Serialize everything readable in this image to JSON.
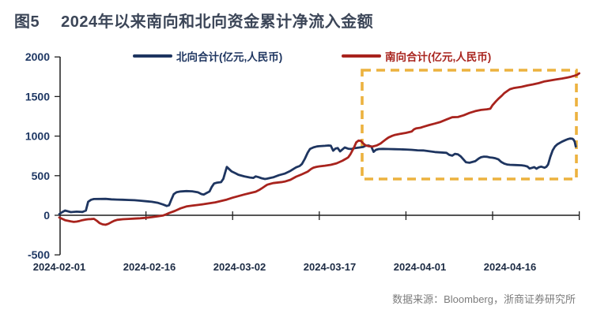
{
  "header": {
    "tag": "图5",
    "title": "2024年以来南向和北向资金累计净流入金额"
  },
  "legend": [
    {
      "label": "北向合计(亿元,人民币)",
      "color": "#1e3560"
    },
    {
      "label": "南向合计(亿元,人民币)",
      "color": "#a8231d"
    }
  ],
  "footer": {
    "source": "数据来源：Bloomberg，浙商证券研究所"
  },
  "chart_data": {
    "type": "line",
    "title": "2024年以来南向和北向资金累计净流入金额",
    "xlabel": "",
    "ylabel": "亿元,人民币",
    "grid": false,
    "legend_position": "top",
    "x_axis": {
      "unit": "date",
      "tick_labels": [
        "2024-02-01",
        "2024-02-16",
        "2024-03-02",
        "2024-03-17",
        "2024-04-01",
        "2024-04-16"
      ],
      "range_days_from_2024_02_01": [
        0,
        90
      ]
    },
    "y_axis": {
      "ticks": [
        2000,
        1500,
        1000,
        500,
        0,
        -500
      ],
      "range": [
        -500,
        2000
      ]
    },
    "highlight_box": {
      "color": "#ecb23f",
      "style": "dashed",
      "day_range": [
        52,
        90
      ],
      "value_range": [
        460,
        1830
      ],
      "meaning": "区间高亮：3月下旬以来南向持续流入、北向走平的背离区间"
    },
    "series": [
      {
        "name": "北向合计(亿元,人民币)",
        "color": "#1e3560",
        "points": [
          [
            0,
            15
          ],
          [
            0.5,
            40
          ],
          [
            1,
            60
          ],
          [
            1.5,
            50
          ],
          [
            2,
            40
          ],
          [
            3,
            46
          ],
          [
            4,
            42
          ],
          [
            4.6,
            60
          ],
          [
            5,
            170
          ],
          [
            5.5,
            196
          ],
          [
            6,
            205
          ],
          [
            7,
            206
          ],
          [
            8,
            207
          ],
          [
            9,
            201
          ],
          [
            10,
            198
          ],
          [
            11,
            196
          ],
          [
            12,
            193
          ],
          [
            13,
            190
          ],
          [
            14,
            184
          ],
          [
            15,
            177
          ],
          [
            16,
            170
          ],
          [
            17,
            158
          ],
          [
            18,
            135
          ],
          [
            18.6,
            118
          ],
          [
            19,
            126
          ],
          [
            19.4,
            200
          ],
          [
            19.8,
            266
          ],
          [
            20.3,
            292
          ],
          [
            21,
            301
          ],
          [
            22,
            306
          ],
          [
            23,
            303
          ],
          [
            24,
            290
          ],
          [
            24.6,
            268
          ],
          [
            25,
            262
          ],
          [
            25.5,
            281
          ],
          [
            26,
            301
          ],
          [
            26.4,
            360
          ],
          [
            26.8,
            401
          ],
          [
            27.3,
            412
          ],
          [
            28,
            418
          ],
          [
            28.4,
            461
          ],
          [
            28.8,
            561
          ],
          [
            29,
            611
          ],
          [
            29.3,
            590
          ],
          [
            29.8,
            556
          ],
          [
            30.5,
            531
          ],
          [
            31,
            512
          ],
          [
            32,
            492
          ],
          [
            33,
            477
          ],
          [
            33.6,
            472
          ],
          [
            34,
            491
          ],
          [
            34.5,
            481
          ],
          [
            35,
            468
          ],
          [
            35.6,
            458
          ],
          [
            36,
            463
          ],
          [
            36.6,
            473
          ],
          [
            37,
            479
          ],
          [
            38,
            506
          ],
          [
            39,
            526
          ],
          [
            40,
            561
          ],
          [
            40.6,
            589
          ],
          [
            41,
            606
          ],
          [
            41.6,
            623
          ],
          [
            42,
            648
          ],
          [
            42.5,
            712
          ],
          [
            43,
            792
          ],
          [
            43.4,
            838
          ],
          [
            44,
            858
          ],
          [
            44.6,
            870
          ],
          [
            45,
            873
          ],
          [
            46,
            877
          ],
          [
            46.6,
            881
          ],
          [
            47,
            878
          ],
          [
            47.4,
            816
          ],
          [
            47.8,
            843
          ],
          [
            48.2,
            849
          ],
          [
            48.6,
            807
          ],
          [
            49,
            831
          ],
          [
            49.4,
            857
          ],
          [
            50,
            841
          ],
          [
            50.6,
            837
          ],
          [
            51,
            847
          ],
          [
            52,
            857
          ],
          [
            52.6,
            863
          ],
          [
            53,
            877
          ],
          [
            53.5,
            881
          ],
          [
            54,
            869
          ],
          [
            54.4,
            801
          ],
          [
            54.8,
            827
          ],
          [
            55.3,
            837
          ],
          [
            56,
            839
          ],
          [
            57,
            837
          ],
          [
            58,
            835
          ],
          [
            59,
            833
          ],
          [
            60,
            831
          ],
          [
            61,
            827
          ],
          [
            62,
            821
          ],
          [
            63,
            819
          ],
          [
            64,
            809
          ],
          [
            65,
            799
          ],
          [
            66,
            794
          ],
          [
            67,
            789
          ],
          [
            67.5,
            763
          ],
          [
            68,
            753
          ],
          [
            68.5,
            776
          ],
          [
            69,
            769
          ],
          [
            69.5,
            743
          ],
          [
            70,
            701
          ],
          [
            70.4,
            669
          ],
          [
            71,
            663
          ],
          [
            71.5,
            673
          ],
          [
            72,
            683
          ],
          [
            72.6,
            717
          ],
          [
            73,
            733
          ],
          [
            73.5,
            741
          ],
          [
            74,
            739
          ],
          [
            74.5,
            731
          ],
          [
            75,
            727
          ],
          [
            75.5,
            719
          ],
          [
            76,
            706
          ],
          [
            76.5,
            673
          ],
          [
            77,
            653
          ],
          [
            77.5,
            641
          ],
          [
            78,
            637
          ],
          [
            79,
            634
          ],
          [
            80,
            631
          ],
          [
            80.6,
            625
          ],
          [
            81,
            617
          ],
          [
            81.4,
            591
          ],
          [
            81.8,
            599
          ],
          [
            82.2,
            609
          ],
          [
            82.6,
            589
          ],
          [
            83,
            607
          ],
          [
            83.4,
            615
          ],
          [
            84,
            601
          ],
          [
            84.3,
            613
          ],
          [
            84.6,
            641
          ],
          [
            85,
            741
          ],
          [
            85.4,
            821
          ],
          [
            85.8,
            869
          ],
          [
            86.2,
            896
          ],
          [
            87,
            929
          ],
          [
            87.6,
            949
          ],
          [
            88,
            961
          ],
          [
            88.4,
            969
          ],
          [
            88.8,
            967
          ],
          [
            89,
            956
          ],
          [
            89.2,
            931
          ],
          [
            89.4,
            869
          ]
        ]
      },
      {
        "name": "南向合计(亿元,人民币)",
        "color": "#a8231d",
        "points": [
          [
            0,
            -28
          ],
          [
            0.5,
            -45
          ],
          [
            1,
            -62
          ],
          [
            1.5,
            -70
          ],
          [
            2,
            -78
          ],
          [
            2.5,
            -84
          ],
          [
            3,
            -80
          ],
          [
            3.5,
            -72
          ],
          [
            4,
            -62
          ],
          [
            4.5,
            -55
          ],
          [
            5,
            -50
          ],
          [
            5.5,
            -48
          ],
          [
            6,
            -45
          ],
          [
            6.5,
            -70
          ],
          [
            7,
            -100
          ],
          [
            7.5,
            -115
          ],
          [
            8,
            -120
          ],
          [
            8.5,
            -108
          ],
          [
            9,
            -88
          ],
          [
            9.5,
            -70
          ],
          [
            10,
            -58
          ],
          [
            11,
            -50
          ],
          [
            12,
            -46
          ],
          [
            13,
            -42
          ],
          [
            14,
            -38
          ],
          [
            15,
            -32
          ],
          [
            16,
            -24
          ],
          [
            17,
            -14
          ],
          [
            18,
            -2
          ],
          [
            18.5,
            12
          ],
          [
            19,
            28
          ],
          [
            20,
            55
          ],
          [
            21,
            88
          ],
          [
            22,
            112
          ],
          [
            23,
            122
          ],
          [
            24,
            130
          ],
          [
            25,
            140
          ],
          [
            26,
            152
          ],
          [
            27,
            163
          ],
          [
            28,
            180
          ],
          [
            29,
            198
          ],
          [
            30,
            222
          ],
          [
            31,
            242
          ],
          [
            32,
            262
          ],
          [
            33,
            280
          ],
          [
            34,
            298
          ],
          [
            34.6,
            320
          ],
          [
            35,
            338
          ],
          [
            35.6,
            368
          ],
          [
            36,
            386
          ],
          [
            36.6,
            398
          ],
          [
            37,
            406
          ],
          [
            38,
            415
          ],
          [
            38.6,
            420
          ],
          [
            39,
            425
          ],
          [
            40,
            448
          ],
          [
            41,
            488
          ],
          [
            42,
            518
          ],
          [
            43,
            552
          ],
          [
            43.6,
            586
          ],
          [
            44,
            602
          ],
          [
            44.5,
            612
          ],
          [
            45,
            618
          ],
          [
            46,
            626
          ],
          [
            47,
            637
          ],
          [
            48,
            656
          ],
          [
            49,
            688
          ],
          [
            49.6,
            713
          ],
          [
            50,
            731
          ],
          [
            50.4,
            773
          ],
          [
            51,
            856
          ],
          [
            51.4,
            921
          ],
          [
            51.8,
            943
          ],
          [
            52.2,
            940
          ],
          [
            52.6,
            908
          ],
          [
            53,
            883
          ],
          [
            53.6,
            872
          ],
          [
            54.2,
            868
          ],
          [
            55,
            883
          ],
          [
            55.6,
            906
          ],
          [
            56,
            929
          ],
          [
            56.6,
            963
          ],
          [
            57,
            983
          ],
          [
            57.6,
            1003
          ],
          [
            58,
            1013
          ],
          [
            59,
            1028
          ],
          [
            60,
            1041
          ],
          [
            61,
            1058
          ],
          [
            61.4,
            1086
          ],
          [
            61.8,
            1099
          ],
          [
            62.5,
            1106
          ],
          [
            63,
            1118
          ],
          [
            64,
            1139
          ],
          [
            65,
            1158
          ],
          [
            66,
            1179
          ],
          [
            67,
            1209
          ],
          [
            68,
            1238
          ],
          [
            69,
            1241
          ],
          [
            70,
            1263
          ],
          [
            71,
            1293
          ],
          [
            72,
            1316
          ],
          [
            73,
            1331
          ],
          [
            74,
            1339
          ],
          [
            74.6,
            1346
          ],
          [
            75,
            1391
          ],
          [
            75.6,
            1441
          ],
          [
            76,
            1471
          ],
          [
            76.6,
            1511
          ],
          [
            77,
            1541
          ],
          [
            77.6,
            1573
          ],
          [
            78,
            1593
          ],
          [
            78.6,
            1606
          ],
          [
            79,
            1611
          ],
          [
            80,
            1623
          ],
          [
            81,
            1639
          ],
          [
            82,
            1653
          ],
          [
            83,
            1669
          ],
          [
            84,
            1691
          ],
          [
            85,
            1703
          ],
          [
            86,
            1715
          ],
          [
            87,
            1727
          ],
          [
            88,
            1741
          ],
          [
            88.6,
            1751
          ],
          [
            89,
            1759
          ],
          [
            89.6,
            1773
          ],
          [
            90,
            1793
          ]
        ]
      }
    ]
  }
}
